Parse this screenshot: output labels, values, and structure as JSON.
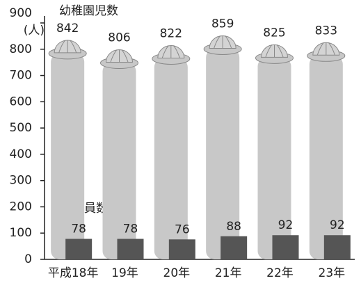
{
  "chart_data": {
    "type": "pictogram-bar",
    "y_label": "(人)",
    "categories": [
      "平成18年",
      "19年",
      "20年",
      "21年",
      "22年",
      "23年"
    ],
    "series": [
      {
        "name": "幼稚園児数",
        "color": "#c8c8c8",
        "values": [
          842,
          806,
          822,
          859,
          825,
          833
        ]
      },
      {
        "name": "教員数",
        "color": "#555555",
        "values": [
          78,
          78,
          76,
          88,
          92,
          92
        ]
      }
    ],
    "ylim": [
      0,
      900
    ],
    "yticks": [
      0,
      100,
      200,
      300,
      400,
      500,
      600,
      700,
      800,
      900
    ]
  }
}
